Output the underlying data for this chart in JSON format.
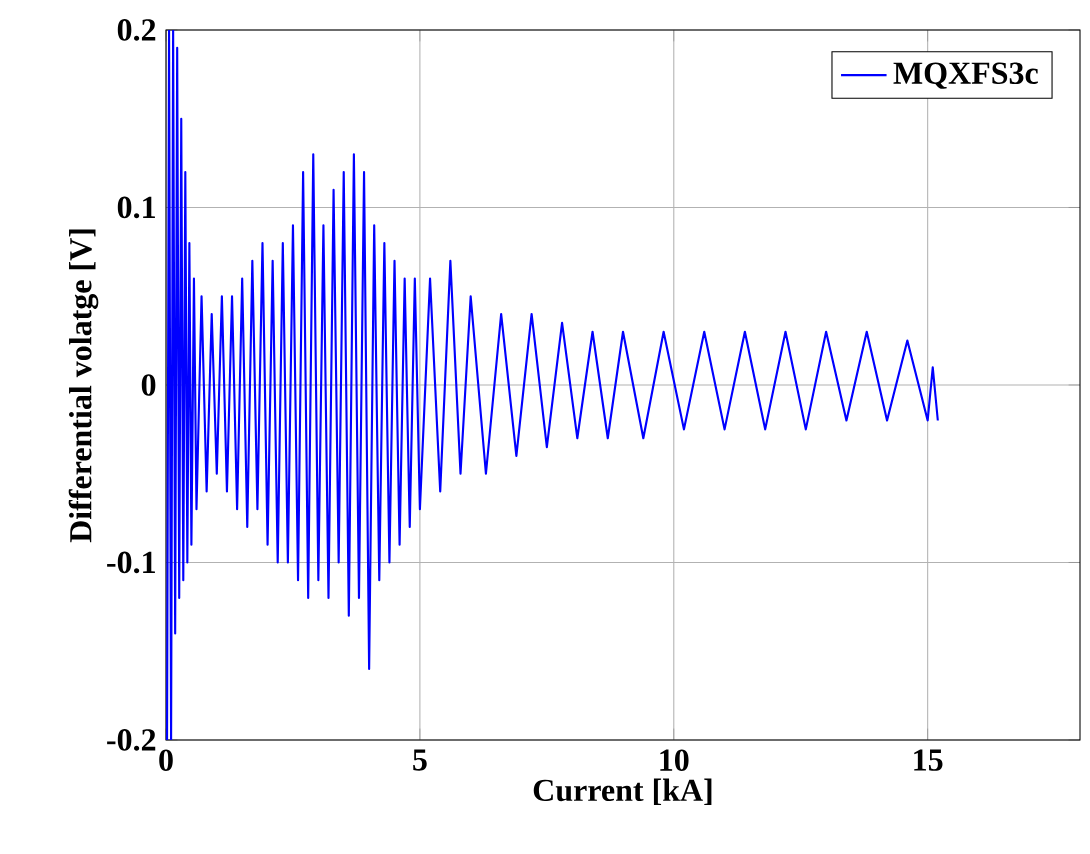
{
  "chart_data": {
    "type": "line",
    "xlabel": "Current [kA]",
    "ylabel": "Differential volatge [V]",
    "xlim": [
      0,
      18
    ],
    "ylim": [
      -0.2,
      0.2
    ],
    "xticks": [
      0,
      5,
      10,
      15
    ],
    "yticks": [
      -0.2,
      -0.1,
      0,
      0.1,
      0.2
    ],
    "grid": true,
    "legend": "top right",
    "marker": "none",
    "line_style": "solid",
    "series": [
      {
        "name": "MQXFS3c",
        "color": "#0000ff",
        "x": [
          0.02,
          0.06,
          0.1,
          0.14,
          0.18,
          0.22,
          0.26,
          0.3,
          0.34,
          0.38,
          0.42,
          0.46,
          0.5,
          0.55,
          0.6,
          0.7,
          0.8,
          0.9,
          1.0,
          1.1,
          1.2,
          1.3,
          1.4,
          1.5,
          1.6,
          1.7,
          1.8,
          1.9,
          2.0,
          2.1,
          2.2,
          2.3,
          2.4,
          2.5,
          2.6,
          2.7,
          2.8,
          2.9,
          3.0,
          3.1,
          3.2,
          3.3,
          3.4,
          3.5,
          3.6,
          3.7,
          3.8,
          3.9,
          4.0,
          4.1,
          4.2,
          4.3,
          4.4,
          4.5,
          4.6,
          4.7,
          4.8,
          4.9,
          5.0,
          5.2,
          5.4,
          5.6,
          5.8,
          6.0,
          6.3,
          6.6,
          6.9,
          7.2,
          7.5,
          7.8,
          8.1,
          8.4,
          8.7,
          9.0,
          9.4,
          9.8,
          10.2,
          10.6,
          11.0,
          11.4,
          11.8,
          12.2,
          12.6,
          13.0,
          13.4,
          13.8,
          14.2,
          14.6,
          15.0,
          15.1,
          15.2
        ],
        "values": [
          -0.2,
          0.2,
          -0.2,
          0.2,
          -0.14,
          0.19,
          -0.12,
          0.15,
          -0.11,
          0.12,
          -0.1,
          0.08,
          -0.09,
          0.06,
          -0.07,
          0.05,
          -0.06,
          0.04,
          -0.05,
          0.05,
          -0.06,
          0.05,
          -0.07,
          0.06,
          -0.08,
          0.07,
          -0.07,
          0.08,
          -0.09,
          0.07,
          -0.1,
          0.08,
          -0.1,
          0.09,
          -0.11,
          0.12,
          -0.12,
          0.13,
          -0.11,
          0.09,
          -0.12,
          0.11,
          -0.1,
          0.12,
          -0.13,
          0.13,
          -0.12,
          0.12,
          -0.16,
          0.09,
          -0.11,
          0.08,
          -0.1,
          0.07,
          -0.09,
          0.06,
          -0.08,
          0.06,
          -0.07,
          0.06,
          -0.06,
          0.07,
          -0.05,
          0.05,
          -0.05,
          0.04,
          -0.04,
          0.04,
          -0.035,
          0.035,
          -0.03,
          0.03,
          -0.03,
          0.03,
          -0.03,
          0.03,
          -0.025,
          0.03,
          -0.025,
          0.03,
          -0.025,
          0.03,
          -0.025,
          0.03,
          -0.02,
          0.03,
          -0.02,
          0.025,
          -0.02,
          0.01,
          -0.02
        ]
      }
    ]
  }
}
